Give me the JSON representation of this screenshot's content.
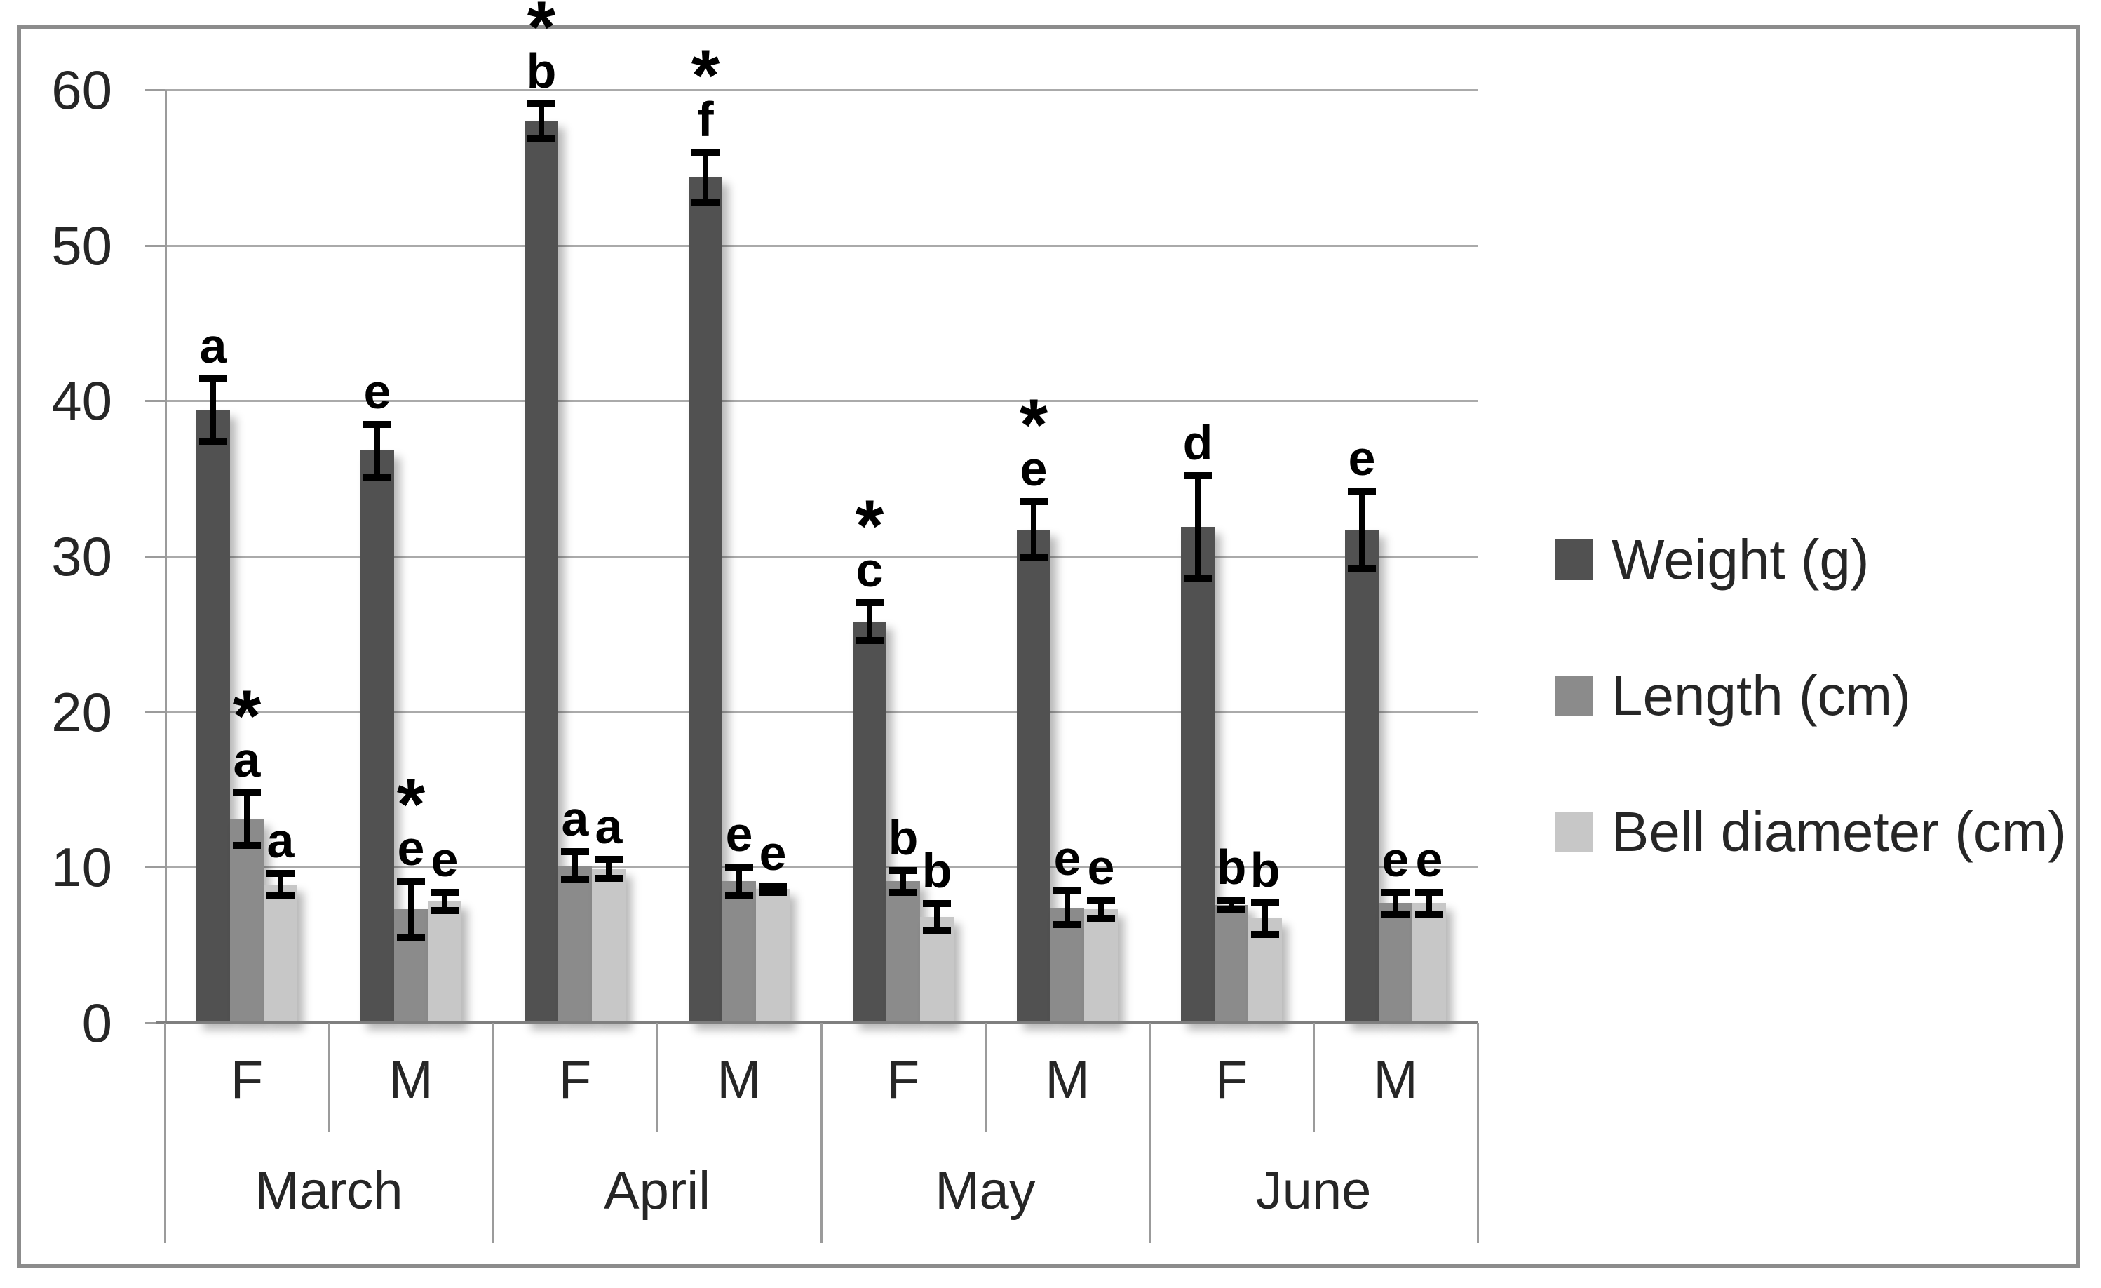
{
  "figure": {
    "border_color": "#8c8c8c",
    "background": "#ffffff",
    "text_color": "#262626",
    "gridline_color": "#aaaaaa",
    "axis_color": "#9b9b9b",
    "error_bar_color": "#000000"
  },
  "chart_data": {
    "type": "bar",
    "title": "",
    "xlabel": "",
    "ylabel": "",
    "ylim": [
      0,
      60
    ],
    "yticks": [
      0,
      10,
      20,
      30,
      40,
      50,
      60
    ],
    "grid": "horizontal",
    "legend_position": "right",
    "months": [
      "March",
      "April",
      "May",
      "June"
    ],
    "sex_labels": [
      "F",
      "M"
    ],
    "columns": [
      "March-F",
      "March-M",
      "April-F",
      "April-M",
      "May-F",
      "May-M",
      "June-F",
      "June-M"
    ],
    "series": [
      {
        "name": "Weight (g)",
        "color": "#515151",
        "values": [
          39.4,
          36.8,
          58.0,
          54.4,
          25.8,
          31.7,
          31.9,
          31.7
        ],
        "errors": [
          2.0,
          1.7,
          1.1,
          1.6,
          1.2,
          1.8,
          3.3,
          2.5
        ],
        "annotations": [
          "a",
          "e",
          "*b",
          "*f",
          "*c",
          "*e",
          "d",
          "e"
        ]
      },
      {
        "name": "Length (cm)",
        "color": "#8b8b8b",
        "values": [
          13.1,
          7.3,
          10.1,
          9.1,
          9.1,
          7.4,
          7.6,
          7.7
        ],
        "errors": [
          1.7,
          1.8,
          0.9,
          0.9,
          0.7,
          1.1,
          0.3,
          0.7
        ],
        "annotations": [
          "*a",
          "*e",
          "a",
          "e",
          "b",
          "e",
          "b",
          "e"
        ]
      },
      {
        "name": "Bell diameter (cm)",
        "color": "#c7c7c7",
        "values": [
          8.9,
          7.8,
          9.9,
          8.6,
          6.8,
          7.3,
          6.7,
          7.7
        ],
        "errors": [
          0.7,
          0.6,
          0.6,
          0.2,
          0.85,
          0.6,
          1.0,
          0.7
        ],
        "annotations": [
          "a",
          "e",
          "a",
          "e",
          "b",
          "e",
          "b",
          "e"
        ]
      }
    ],
    "annotation_note_symbols": [
      "a",
      "b",
      "c",
      "d",
      "e",
      "f",
      "*"
    ]
  }
}
